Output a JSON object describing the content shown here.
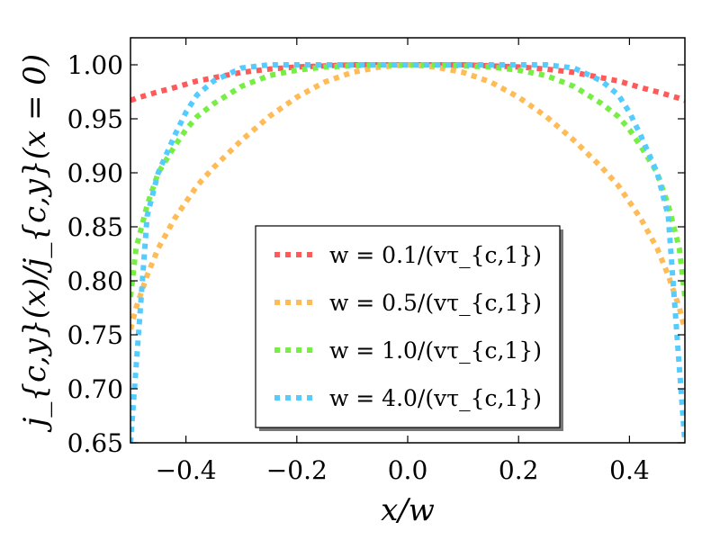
{
  "chart_data": {
    "type": "line",
    "title": "",
    "xlabel": "x/w",
    "ylabel": "j_{c,y}(x)/j_{c,y}(x = 0)",
    "xlim": [
      -0.5,
      0.5
    ],
    "ylim": [
      0.65,
      1.025
    ],
    "xticks": [
      -0.4,
      -0.2,
      0.0,
      0.2,
      0.4
    ],
    "xtick_labels": [
      "−0.4",
      "−0.2",
      "0.0",
      "0.2",
      "0.4"
    ],
    "yticks": [
      0.65,
      0.7,
      0.75,
      0.8,
      0.85,
      0.9,
      0.95,
      1.0
    ],
    "ytick_labels": [
      "0.65",
      "0.70",
      "0.75",
      "0.80",
      "0.85",
      "0.90",
      "0.95",
      "1.00"
    ],
    "grid": false,
    "legend_position": "lower-center",
    "x": [
      -0.5,
      -0.49,
      -0.47,
      -0.45,
      -0.42,
      -0.4,
      -0.38,
      -0.35,
      -0.3,
      -0.25,
      -0.2,
      -0.15,
      -0.1,
      -0.05,
      0.0,
      0.05,
      0.1,
      0.15,
      0.2,
      0.25,
      0.3,
      0.35,
      0.38,
      0.4,
      0.42,
      0.45,
      0.47,
      0.49,
      0.5
    ],
    "series": [
      {
        "name": "w = 0.1/(vτ_{c,1})",
        "color": "#ff5a5a",
        "values": [
          0.967,
          0.969,
          0.972,
          0.975,
          0.979,
          0.982,
          0.985,
          0.988,
          0.993,
          0.996,
          0.998,
          0.999,
          1.0,
          1.0,
          1.0,
          1.0,
          1.0,
          0.999,
          0.998,
          0.996,
          0.993,
          0.988,
          0.985,
          0.982,
          0.979,
          0.975,
          0.972,
          0.969,
          0.967
        ]
      },
      {
        "name": "w = 0.5/(vτ_{c,1})",
        "color": "#ffbb55",
        "values": [
          0.755,
          0.775,
          0.805,
          0.83,
          0.858,
          0.873,
          0.888,
          0.905,
          0.93,
          0.952,
          0.97,
          0.984,
          0.993,
          0.998,
          1.0,
          0.998,
          0.993,
          0.984,
          0.97,
          0.952,
          0.93,
          0.905,
          0.888,
          0.873,
          0.858,
          0.83,
          0.805,
          0.775,
          0.755
        ]
      },
      {
        "name": "w = 1.0/(vτ_{c,1})",
        "color": "#77ee44",
        "values": [
          0.785,
          0.83,
          0.87,
          0.9,
          0.925,
          0.94,
          0.952,
          0.964,
          0.98,
          0.99,
          0.995,
          0.998,
          0.999,
          1.0,
          1.0,
          1.0,
          0.999,
          0.998,
          0.995,
          0.99,
          0.98,
          0.964,
          0.952,
          0.94,
          0.925,
          0.9,
          0.87,
          0.83,
          0.785
        ]
      },
      {
        "name": "w = 4.0/(vτ_{c,1})",
        "color": "#55ccff",
        "values": [
          0.65,
          0.72,
          0.86,
          0.9,
          0.935,
          0.956,
          0.972,
          0.985,
          0.997,
          1.0,
          1.0,
          1.0,
          1.0,
          1.0,
          1.0,
          1.0,
          1.0,
          1.0,
          1.0,
          1.0,
          0.997,
          0.985,
          0.972,
          0.956,
          0.935,
          0.9,
          0.86,
          0.72,
          0.65
        ]
      }
    ]
  }
}
